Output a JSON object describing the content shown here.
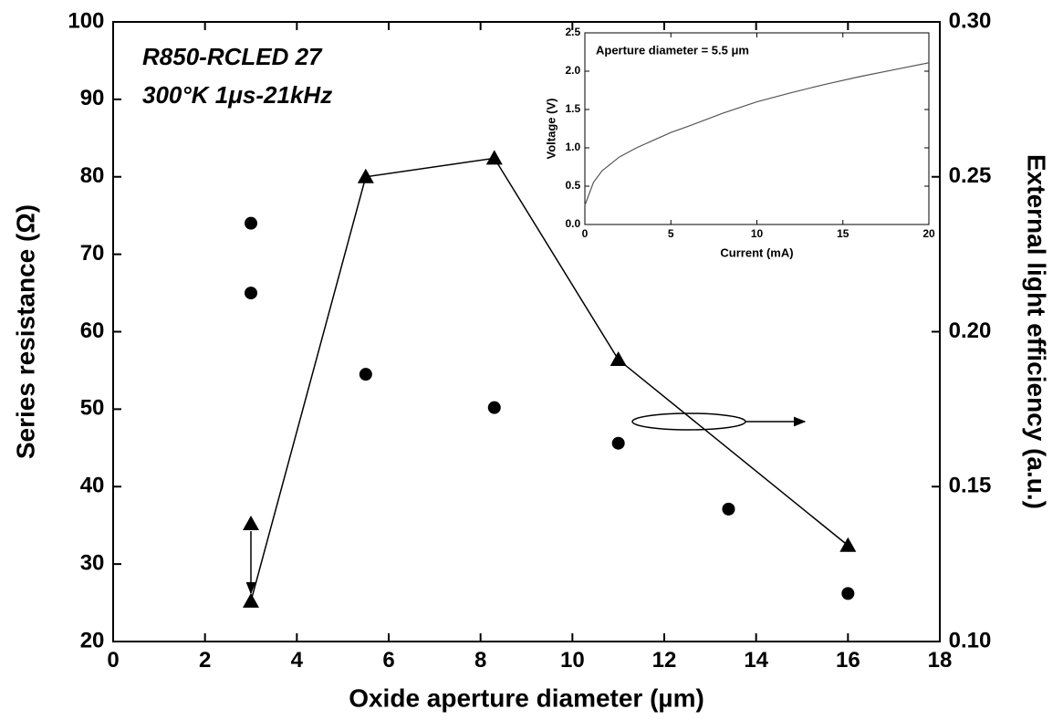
{
  "chart_data": [
    {
      "type": "line",
      "xlabel": "Oxide aperture diameter (µm)",
      "ylabel": "Series resistance (Ω)",
      "y2label": "External light efficiency (a.u.)",
      "annotations": [
        "R850-RCLED 27",
        "300°K 1μs-21kHz"
      ],
      "xlim": [
        0,
        18
      ],
      "xticks": [
        0,
        2,
        4,
        6,
        8,
        10,
        12,
        14,
        16,
        18
      ],
      "ylim": [
        20,
        100
      ],
      "yticks": [
        20,
        30,
        40,
        50,
        60,
        70,
        80,
        90,
        100
      ],
      "y2lim": [
        0.1,
        0.3
      ],
      "y2ticks": [
        {
          "value": 0.1,
          "label": "0.10"
        },
        0.15,
        {
          "value": 0.2,
          "label": "0.20"
        },
        0.25,
        {
          "value": 0.3,
          "label": "0.30"
        }
      ],
      "series": [
        {
          "color": "#000000",
          "marker": "circle",
          "line": false,
          "x": [
            3,
            3,
            5.5,
            8.3,
            11,
            13.4,
            16
          ],
          "values": [
            74,
            65,
            54.5,
            50.2,
            45.6,
            37.1,
            26.2
          ]
        },
        {
          "color": "#000000",
          "marker": "triangle",
          "line": true,
          "axis": "y2",
          "x": [
            3,
            5.5,
            8.3,
            11,
            16
          ],
          "values": [
            0.113,
            0.25,
            0.256,
            0.191,
            0.131
          ]
        },
        {
          "color": "#000000",
          "marker": "triangle",
          "line": false,
          "axis": "y2",
          "x": [
            3
          ],
          "values": [
            0.138
          ]
        }
      ]
    },
    {
      "type": "line",
      "title": "Aperture diameter = 5.5 μm",
      "xlabel": "Current (mA)",
      "ylabel": "Voltage (V)",
      "xlim": [
        0,
        20
      ],
      "xticks": [
        0,
        5,
        10,
        15,
        20
      ],
      "ylim": [
        0,
        2.5
      ],
      "yticks": [
        {
          "value": 0,
          "label": "0.0"
        },
        0.5,
        {
          "value": 1,
          "label": "1.0"
        },
        1.5,
        {
          "value": 2,
          "label": "2.0"
        },
        2.5
      ],
      "series": [
        {
          "color": "#555555",
          "line": true,
          "x": [
            0,
            0.5,
            1,
            2,
            3,
            4,
            5,
            6,
            8,
            10,
            12,
            14,
            16,
            18,
            20
          ],
          "values": [
            0.25,
            0.55,
            0.7,
            0.88,
            1.0,
            1.1,
            1.2,
            1.28,
            1.45,
            1.6,
            1.72,
            1.83,
            1.93,
            2.02,
            2.11
          ]
        }
      ]
    }
  ]
}
